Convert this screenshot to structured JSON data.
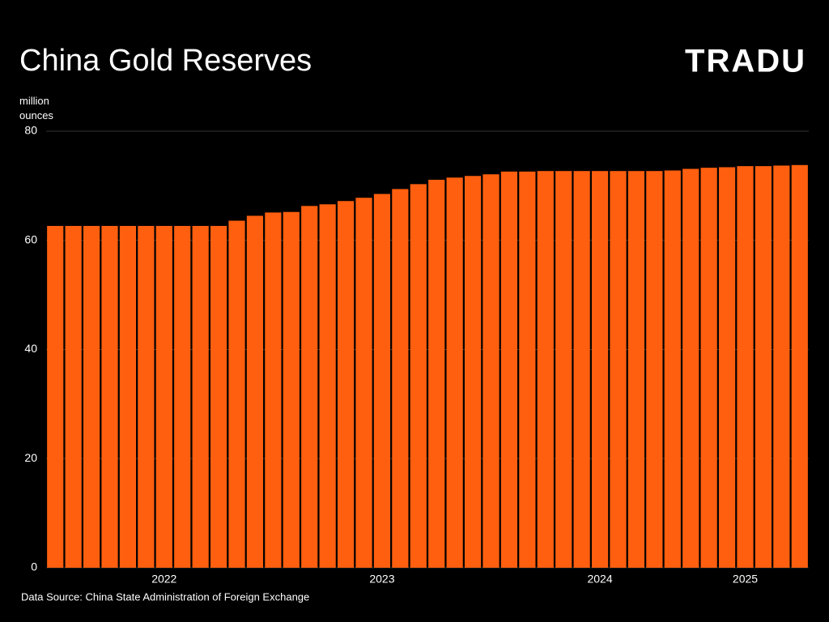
{
  "chart_data": {
    "type": "bar",
    "title": "China Gold Reserves",
    "logo": "TRADU",
    "y_label": "million ounces",
    "source": "Data Source: China State Administration of Foreign Exchange",
    "color": "#ff5f0f",
    "grid": true,
    "categories": [
      null,
      null,
      null,
      null,
      null,
      null,
      "2022",
      null,
      null,
      null,
      null,
      null,
      null,
      null,
      null,
      null,
      null,
      null,
      "2023",
      null,
      null,
      null,
      null,
      null,
      null,
      null,
      null,
      null,
      null,
      null,
      "2024",
      null,
      null,
      null,
      null,
      null,
      null,
      null,
      "2025",
      null,
      null,
      null
    ],
    "values": [
      62.64,
      62.64,
      62.64,
      62.64,
      62.64,
      62.64,
      62.64,
      62.64,
      62.64,
      62.64,
      63.6,
      64.5,
      65.1,
      65.2,
      66.3,
      66.6,
      67.2,
      67.8,
      68.5,
      69.4,
      70.3,
      71.1,
      71.5,
      71.8,
      72.1,
      72.6,
      72.6,
      72.7,
      72.7,
      72.7,
      72.7,
      72.7,
      72.7,
      72.7,
      72.8,
      73.1,
      73.3,
      73.4,
      73.6,
      73.6,
      73.7,
      73.8
    ],
    "ylim": [
      0,
      80
    ],
    "yticks": [
      0,
      20,
      40,
      60,
      80
    ]
  }
}
